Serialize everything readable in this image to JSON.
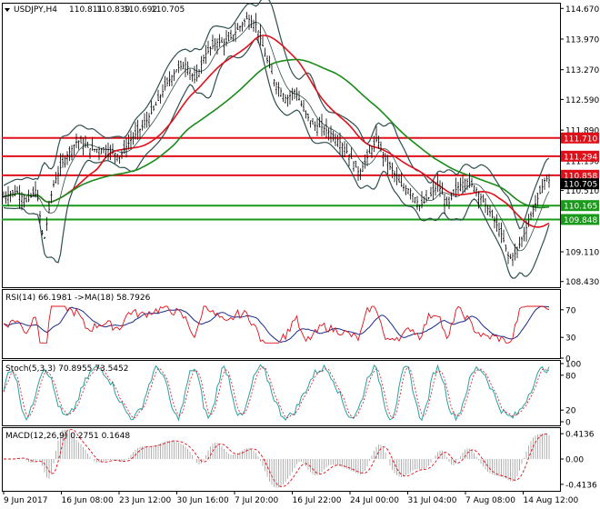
{
  "main": {
    "symbol_header": "USDJPY,H4",
    "ohlc": [
      "110.811",
      "110.839",
      "110.692",
      "110.705"
    ],
    "price_ticks": [
      "114.670",
      "113.970",
      "113.270",
      "112.590",
      "111.890",
      "111.190",
      "110.510",
      "109.810",
      "109.110",
      "108.430"
    ],
    "ylim": [
      108.3,
      114.8
    ],
    "level_lines": [
      {
        "label": "111.710",
        "value": 111.71,
        "color": "#e0101a"
      },
      {
        "label": "111.294",
        "value": 111.294,
        "color": "#e0101a"
      },
      {
        "label": "110.858",
        "value": 110.858,
        "color": "#e0101a"
      },
      {
        "label": "110.165",
        "value": 110.165,
        "color": "#1a9a1a"
      },
      {
        "label": "109.848",
        "value": 109.848,
        "color": "#1a9a1a"
      }
    ],
    "current_price": {
      "label": "110.705",
      "value": 110.705
    }
  },
  "rsi": {
    "header": "RSI(14) 66.1981  ->MA(18) 58.7926",
    "ticks": [
      {
        "label": "70",
        "value": 70
      },
      {
        "label": "30",
        "value": 30
      },
      {
        "label": "0",
        "value": 0
      }
    ],
    "ylim": [
      0,
      100
    ]
  },
  "stoch": {
    "header": "Stoch(5,3,3) 70.8955 73.5452",
    "ticks": [
      {
        "label": "100",
        "value": 100
      },
      {
        "label": "80",
        "value": 80
      },
      {
        "label": "20",
        "value": 20
      },
      {
        "label": "0",
        "value": 0
      }
    ],
    "ylim": [
      0,
      100
    ]
  },
  "macd": {
    "header": "MACD(12,26,9) 0.2751 0.1648",
    "ticks": [
      {
        "label": "0.4136",
        "value": 0.4136
      },
      {
        "label": "0.00",
        "value": 0
      },
      {
        "label": "-0.4136",
        "value": -0.4136
      }
    ],
    "ylim": [
      -0.52,
      0.52
    ]
  },
  "time_axis": [
    "9 Jun 2017",
    "16 Jun 08:00",
    "23 Jun 12:00",
    "30 Jun 16:00",
    "7 Jul 20:00",
    "16 Jul 22:00",
    "24 Jul 00:00",
    "31 Jul 04:00",
    "7 Aug 08:00",
    "14 Aug 12:00"
  ],
  "colors": {
    "bollinger": "#2f4f4f",
    "ma_red": "#e0101a",
    "ma_green": "#1a8a1a",
    "rsi_line": "#e0101a",
    "rsi_ma": "#1a2a8a",
    "stoch_main": "#2aa0a0",
    "stoch_signal": "#e0101a",
    "macd_hist": "#b0b0b0",
    "macd_signal": "#e0101a"
  }
}
